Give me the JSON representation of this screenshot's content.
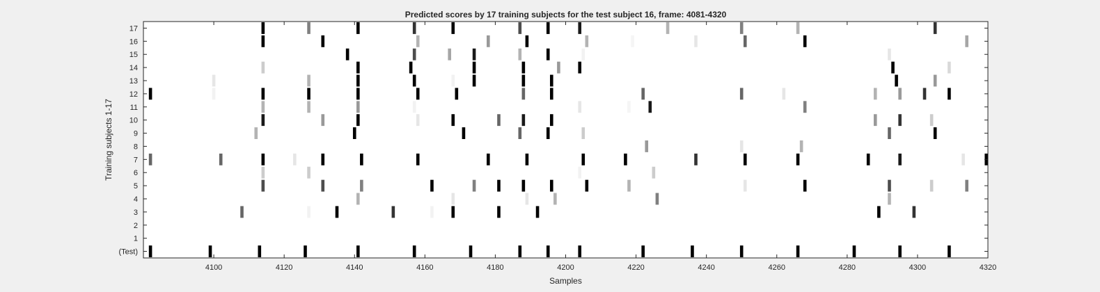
{
  "chart_data": {
    "type": "heatmap",
    "title": "Predicted scores by 17 training subjects for the test subject 16, frame: 4081-4320",
    "xlabel": "Samples",
    "ylabel": "Training subjects 1-17",
    "xlim": [
      4080,
      4320
    ],
    "x_ticks": [
      "4100",
      "4120",
      "4140",
      "4160",
      "4180",
      "4200",
      "4220",
      "4240",
      "4260",
      "4280",
      "4300",
      "4320"
    ],
    "y_ticks": [
      "17",
      "16",
      "15",
      "14",
      "13",
      "12",
      "11",
      "10",
      "9",
      "8",
      "7",
      "6",
      "5",
      "4",
      "3",
      "2",
      "1",
      "(Test)"
    ],
    "colormap": "gray, white = 0, black = 1",
    "grid": false,
    "rows": [
      {
        "label": "17",
        "marks": [
          [
            4114,
            1.0
          ],
          [
            4127,
            0.5
          ],
          [
            4141,
            1.0
          ],
          [
            4157,
            0.8
          ],
          [
            4168,
            1.0
          ],
          [
            4187,
            0.7
          ],
          [
            4195,
            1.0
          ],
          [
            4204,
            0.9
          ],
          [
            4229,
            0.3
          ],
          [
            4250,
            0.5
          ],
          [
            4266,
            0.3
          ],
          [
            4305,
            0.8
          ]
        ]
      },
      {
        "label": "16",
        "marks": [
          [
            4114,
            1.0
          ],
          [
            4131,
            1.0
          ],
          [
            4158,
            0.3
          ],
          [
            4178,
            0.4
          ],
          [
            4189,
            1.0
          ],
          [
            4206,
            0.3
          ],
          [
            4219,
            0.04
          ],
          [
            4237,
            0.1
          ],
          [
            4251,
            0.6
          ],
          [
            4268,
            1.0
          ],
          [
            4314,
            0.35
          ]
        ]
      },
      {
        "label": "15",
        "marks": [
          [
            4138,
            1.0
          ],
          [
            4157,
            0.7
          ],
          [
            4167,
            0.35
          ],
          [
            4174,
            0.9
          ],
          [
            4187,
            0.3
          ],
          [
            4195,
            1.0
          ],
          [
            4205,
            0.05
          ],
          [
            4292,
            0.1
          ]
        ]
      },
      {
        "label": "14",
        "marks": [
          [
            4114,
            0.2
          ],
          [
            4141,
            1.0
          ],
          [
            4156,
            1.0
          ],
          [
            4174,
            1.0
          ],
          [
            4188,
            1.0
          ],
          [
            4198,
            0.4
          ],
          [
            4204,
            1.0
          ],
          [
            4293,
            1.0
          ],
          [
            4309,
            0.15
          ]
        ]
      },
      {
        "label": "13",
        "marks": [
          [
            4100,
            0.1
          ],
          [
            4127,
            0.3
          ],
          [
            4141,
            1.0
          ],
          [
            4157,
            1.0
          ],
          [
            4168,
            0.05
          ],
          [
            4174,
            1.0
          ],
          [
            4188,
            1.0
          ],
          [
            4196,
            1.0
          ],
          [
            4294,
            1.0
          ],
          [
            4305,
            0.4
          ]
        ]
      },
      {
        "label": "12",
        "marks": [
          [
            4082,
            1.0
          ],
          [
            4100,
            0.05
          ],
          [
            4114,
            1.0
          ],
          [
            4127,
            1.0
          ],
          [
            4141,
            1.0
          ],
          [
            4158,
            1.0
          ],
          [
            4169,
            1.0
          ],
          [
            4188,
            0.6
          ],
          [
            4196,
            1.0
          ],
          [
            4222,
            0.6
          ],
          [
            4250,
            0.6
          ],
          [
            4262,
            0.1
          ],
          [
            4288,
            0.3
          ],
          [
            4295,
            0.4
          ],
          [
            4302,
            0.8
          ],
          [
            4309,
            1.0
          ]
        ]
      },
      {
        "label": "11",
        "marks": [
          [
            4114,
            0.3
          ],
          [
            4127,
            0.3
          ],
          [
            4141,
            0.4
          ],
          [
            4157,
            0.05
          ],
          [
            4204,
            0.1
          ],
          [
            4218,
            0.04
          ],
          [
            4224,
            0.9
          ],
          [
            4268,
            0.5
          ]
        ]
      },
      {
        "label": "10",
        "marks": [
          [
            4114,
            0.9
          ],
          [
            4131,
            0.4
          ],
          [
            4141,
            1.0
          ],
          [
            4158,
            0.1
          ],
          [
            4168,
            1.0
          ],
          [
            4181,
            0.6
          ],
          [
            4188,
            0.9
          ],
          [
            4196,
            1.0
          ],
          [
            4288,
            0.4
          ],
          [
            4295,
            0.8
          ],
          [
            4304,
            0.2
          ]
        ]
      },
      {
        "label": "9",
        "marks": [
          [
            4112,
            0.3
          ],
          [
            4140,
            1.0
          ],
          [
            4171,
            1.0
          ],
          [
            4187,
            0.6
          ],
          [
            4195,
            1.0
          ],
          [
            4205,
            0.2
          ],
          [
            4292,
            0.6
          ],
          [
            4305,
            1.0
          ]
        ]
      },
      {
        "label": "8",
        "marks": [
          [
            4223,
            0.4
          ],
          [
            4250,
            0.1
          ],
          [
            4267,
            0.3
          ]
        ]
      },
      {
        "label": "7",
        "marks": [
          [
            4082,
            0.6
          ],
          [
            4102,
            0.6
          ],
          [
            4114,
            1.0
          ],
          [
            4123,
            0.1
          ],
          [
            4131,
            1.0
          ],
          [
            4142,
            1.0
          ],
          [
            4158,
            1.0
          ],
          [
            4178,
            1.0
          ],
          [
            4189,
            1.0
          ],
          [
            4205,
            1.0
          ],
          [
            4217,
            1.0
          ],
          [
            4237,
            0.8
          ],
          [
            4251,
            1.0
          ],
          [
            4266,
            1.0
          ],
          [
            4286,
            1.0
          ],
          [
            4295,
            0.9
          ],
          [
            4313,
            0.1
          ],
          [
            4320,
            1.0
          ]
        ]
      },
      {
        "label": "6",
        "marks": [
          [
            4114,
            0.2
          ],
          [
            4127,
            0.2
          ],
          [
            4204,
            0.05
          ],
          [
            4225,
            0.2
          ]
        ]
      },
      {
        "label": "5",
        "marks": [
          [
            4114,
            0.7
          ],
          [
            4131,
            0.7
          ],
          [
            4142,
            0.5
          ],
          [
            4162,
            1.0
          ],
          [
            4174,
            0.5
          ],
          [
            4181,
            1.0
          ],
          [
            4188,
            1.0
          ],
          [
            4196,
            1.0
          ],
          [
            4206,
            1.0
          ],
          [
            4218,
            0.3
          ],
          [
            4251,
            0.1
          ],
          [
            4268,
            1.0
          ],
          [
            4292,
            0.7
          ],
          [
            4304,
            0.2
          ],
          [
            4314,
            0.5
          ]
        ]
      },
      {
        "label": "4",
        "marks": [
          [
            4141,
            0.3
          ],
          [
            4168,
            0.1
          ],
          [
            4189,
            0.1
          ],
          [
            4197,
            0.3
          ],
          [
            4226,
            0.5
          ],
          [
            4292,
            0.3
          ]
        ]
      },
      {
        "label": "3",
        "marks": [
          [
            4108,
            0.6
          ],
          [
            4127,
            0.05
          ],
          [
            4135,
            1.0
          ],
          [
            4151,
            0.8
          ],
          [
            4162,
            0.05
          ],
          [
            4168,
            1.0
          ],
          [
            4181,
            1.0
          ],
          [
            4192,
            1.0
          ],
          [
            4289,
            1.0
          ],
          [
            4299,
            0.8
          ]
        ]
      },
      {
        "label": "2",
        "marks": []
      },
      {
        "label": "1",
        "marks": []
      },
      {
        "label": "(Test)",
        "marks": [
          [
            4082,
            1.0
          ],
          [
            4099,
            1.0
          ],
          [
            4113,
            1.0
          ],
          [
            4126,
            1.0
          ],
          [
            4141,
            1.0
          ],
          [
            4157,
            1.0
          ],
          [
            4173,
            1.0
          ],
          [
            4187,
            1.0
          ],
          [
            4195,
            1.0
          ],
          [
            4204,
            1.0
          ],
          [
            4222,
            1.0
          ],
          [
            4236,
            1.0
          ],
          [
            4250,
            1.0
          ],
          [
            4266,
            1.0
          ],
          [
            4282,
            1.0
          ],
          [
            4295,
            1.0
          ],
          [
            4309,
            1.0
          ]
        ]
      }
    ]
  }
}
